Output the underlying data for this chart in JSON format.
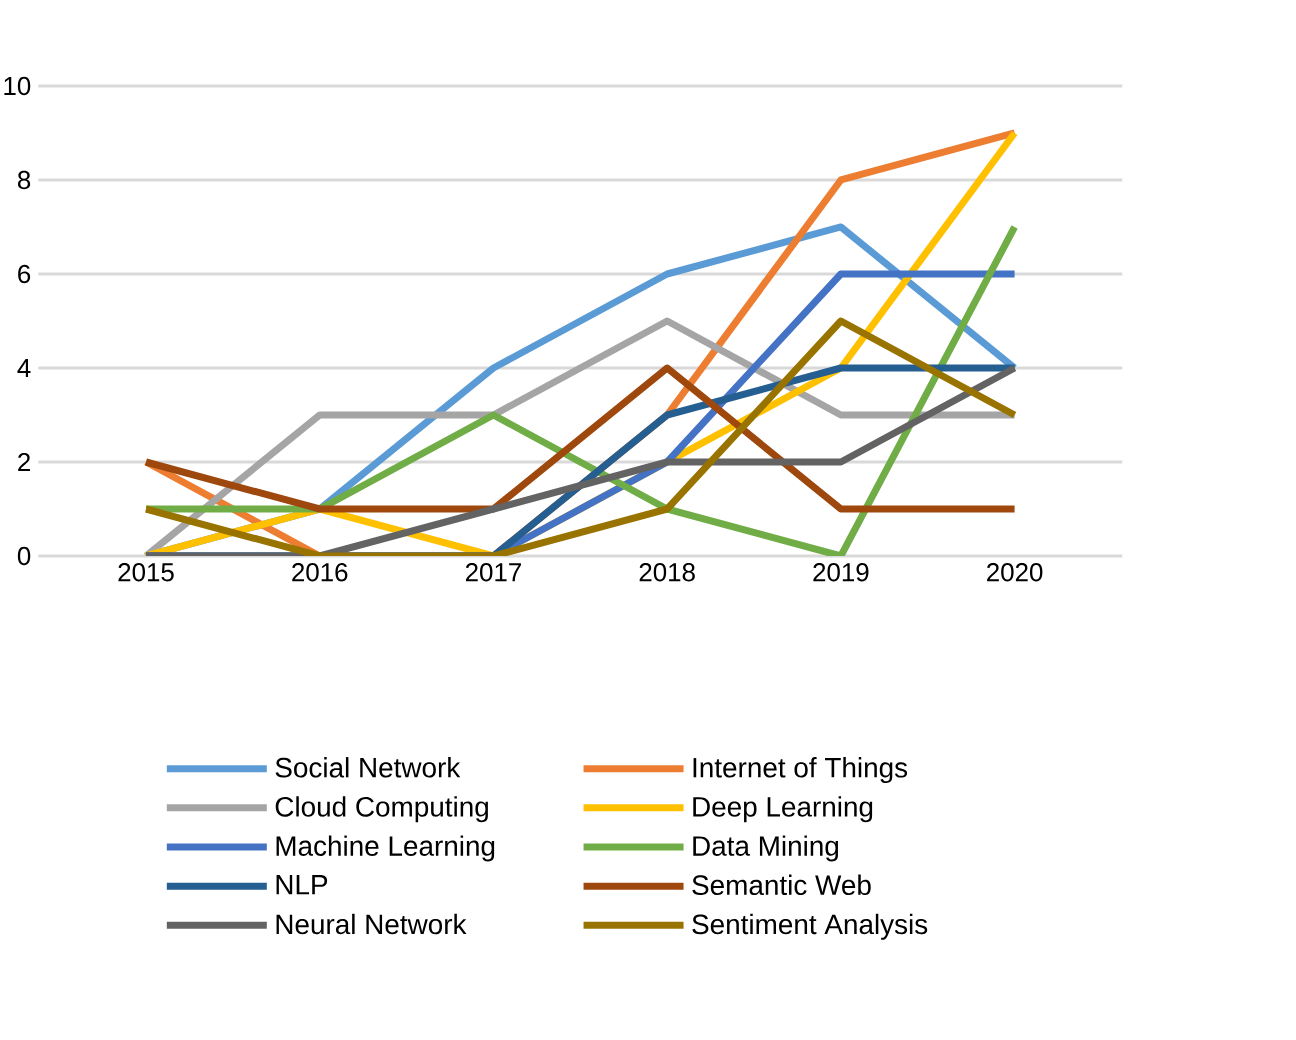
{
  "chart_data": {
    "type": "line",
    "categories": [
      "2015",
      "2016",
      "2017",
      "2018",
      "2019",
      "2020"
    ],
    "series": [
      {
        "name": "Social Network",
        "color": "#5b9bd5",
        "values": [
          0,
          1,
          4,
          6,
          7,
          4
        ]
      },
      {
        "name": "Internet of Things",
        "color": "#ed7d31",
        "values": [
          2,
          0,
          0,
          3,
          8,
          9
        ]
      },
      {
        "name": "Cloud Computing",
        "color": "#a5a5a5",
        "values": [
          0,
          3,
          3,
          5,
          3,
          3
        ]
      },
      {
        "name": "Deep Learning",
        "color": "#ffc000",
        "values": [
          0,
          1,
          0,
          2,
          4,
          9
        ]
      },
      {
        "name": "Machine Learning",
        "color": "#4472c4",
        "values": [
          0,
          0,
          0,
          2,
          6,
          6
        ]
      },
      {
        "name": "Data Mining",
        "color": "#70ad47",
        "values": [
          1,
          1,
          3,
          1,
          0,
          7
        ]
      },
      {
        "name": "NLP",
        "color": "#255e91",
        "values": [
          0,
          0,
          0,
          3,
          4,
          4
        ]
      },
      {
        "name": "Semantic Web",
        "color": "#9e480e",
        "values": [
          2,
          1,
          1,
          4,
          1,
          1
        ]
      },
      {
        "name": "Neural Network",
        "color": "#636363",
        "values": [
          0,
          0,
          1,
          2,
          2,
          4
        ]
      },
      {
        "name": "Sentiment Analysis",
        "color": "#997300",
        "values": [
          1,
          0,
          0,
          1,
          5,
          3
        ]
      }
    ],
    "ylim": [
      0,
      10
    ],
    "yticks": [
      0,
      2,
      4,
      6,
      8,
      10
    ],
    "grid": "y",
    "legend": "bottom",
    "marker": "none",
    "line_style": "solid"
  }
}
